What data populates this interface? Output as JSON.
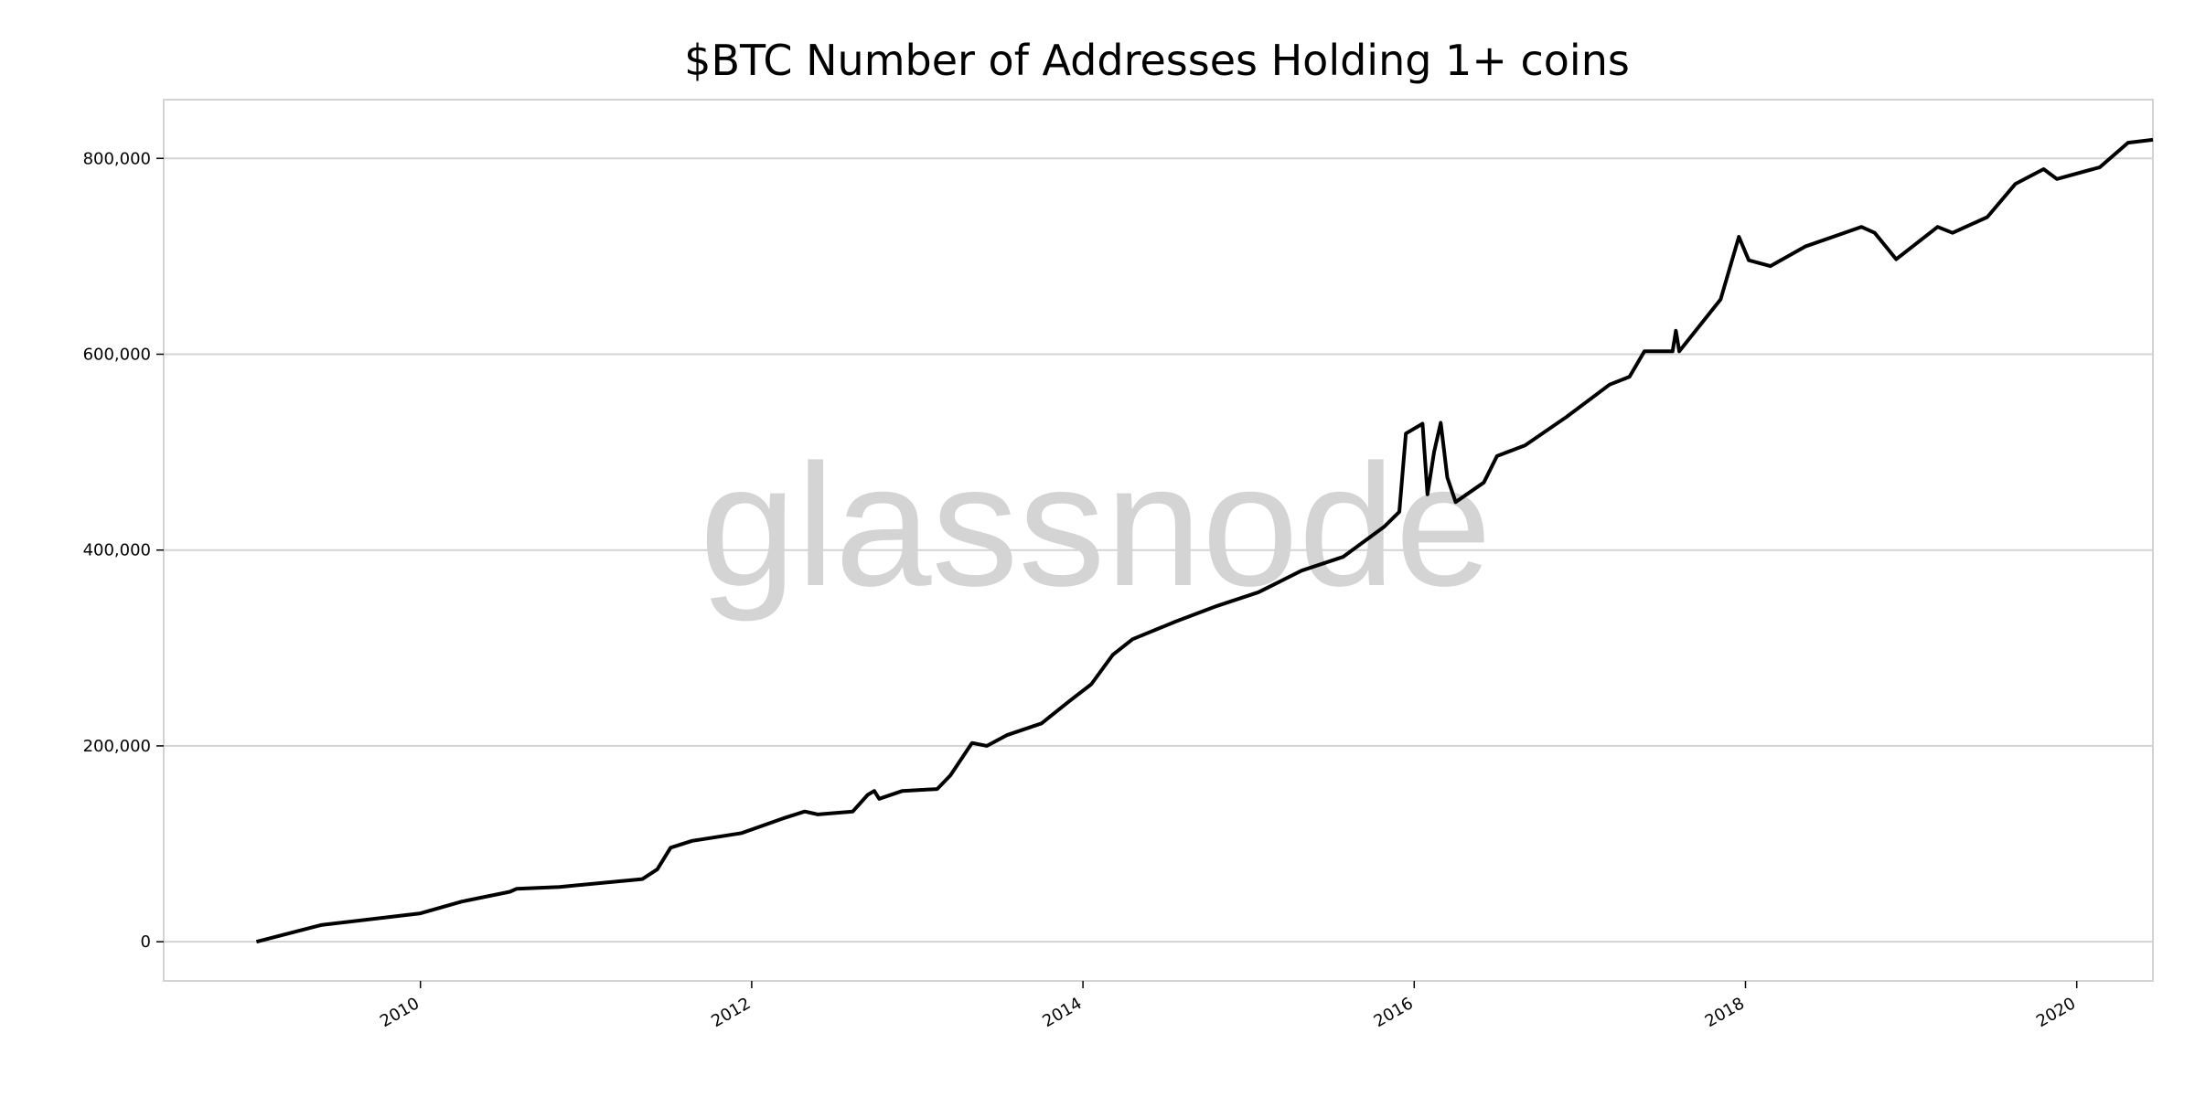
{
  "chart_data": {
    "type": "line",
    "title": "$BTC Number of Addresses Holding 1+ coins",
    "watermark": "glassnode",
    "xlabel": "",
    "ylabel": "",
    "xlim": [
      2008.45,
      2020.46
    ],
    "ylim": [
      -40000,
      860000
    ],
    "grid": "horizontal",
    "line_color": "#000000",
    "grid_color": "#d3d3d3",
    "x_ticks": [
      2010,
      2012,
      2014,
      2016,
      2018,
      2020
    ],
    "x_tick_labels": [
      "2010",
      "2012",
      "2014",
      "2016",
      "2018",
      "2020"
    ],
    "y_ticks": [
      0,
      200000,
      400000,
      600000,
      800000
    ],
    "y_tick_labels": [
      "0",
      "200,000",
      "400,000",
      "600,000",
      "800,000"
    ],
    "series": [
      {
        "x": [
          2009.01,
          2009.4,
          2010.0,
          2010.25,
          2010.54,
          2010.58,
          2010.84,
          2011.34,
          2011.43,
          2011.51,
          2011.64,
          2011.94,
          2012.19,
          2012.32,
          2012.4,
          2012.61,
          2012.7,
          2012.74,
          2012.77,
          2012.91,
          2013.12,
          2013.2,
          2013.33,
          2013.42,
          2013.54,
          2013.75,
          2013.92,
          2014.05,
          2014.18,
          2014.3,
          2014.56,
          2014.81,
          2015.06,
          2015.32,
          2015.57,
          2015.82,
          2015.91,
          2015.95,
          2016.05,
          2016.08,
          2016.12,
          2016.16,
          2016.2,
          2016.25,
          2016.42,
          2016.5,
          2016.67,
          2016.92,
          2017.18,
          2017.3,
          2017.39,
          2017.56,
          2017.58,
          2017.6,
          2017.85,
          2017.96,
          2018.02,
          2018.15,
          2018.36,
          2018.7,
          2018.78,
          2018.91,
          2019.16,
          2019.25,
          2019.46,
          2019.63,
          2019.8,
          2019.88,
          2020.14,
          2020.31,
          2020.46
        ],
        "y": [
          0,
          17000,
          29000,
          41000,
          51000,
          54000,
          56000,
          64000,
          74000,
          96000,
          103000,
          111000,
          126000,
          133000,
          130000,
          133000,
          150000,
          154000,
          146000,
          154000,
          156000,
          170000,
          203000,
          200000,
          211000,
          223000,
          246000,
          263000,
          293000,
          309000,
          327000,
          343000,
          357000,
          379000,
          393000,
          424000,
          439000,
          519000,
          529000,
          457000,
          500000,
          530000,
          474000,
          449000,
          469000,
          496000,
          507000,
          536000,
          569000,
          577000,
          603000,
          603000,
          624000,
          603000,
          656000,
          720000,
          696000,
          690000,
          710000,
          730000,
          724000,
          697000,
          730000,
          724000,
          740000,
          774000,
          789000,
          779000,
          791000,
          816000,
          819000
        ]
      }
    ]
  }
}
